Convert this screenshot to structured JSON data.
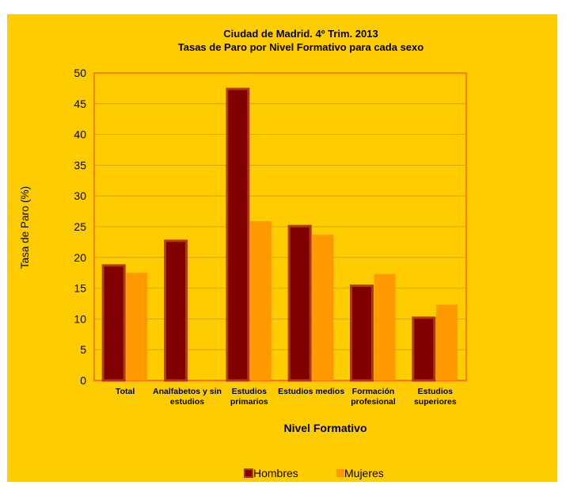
{
  "colors": {
    "background": "#FFCC00",
    "plot_area": "#FFCC00",
    "plot_border": "#FF6600",
    "hombres": "#800000",
    "hombres_edge": "#B03A10",
    "mujeres": "#FF9900"
  },
  "chart_data": {
    "type": "bar",
    "title": "Ciudad de Madrid. 4º Trim. 2013",
    "subtitle": "Tasas de Paro por Nivel Formativo para cada sexo",
    "xlabel": "Nivel Formativo",
    "ylabel": "Tasa de Paro (%)",
    "ylim": [
      0,
      50
    ],
    "yticks": [
      0,
      5,
      10,
      15,
      20,
      25,
      30,
      35,
      40,
      45,
      50
    ],
    "grid": true,
    "legend_position": "bottom",
    "categories": [
      [
        "Total"
      ],
      [
        "Analfabetos y sin",
        "estudios"
      ],
      [
        "Estudios",
        "primarios"
      ],
      [
        "Estudios medios"
      ],
      [
        "Formación",
        "profesional"
      ],
      [
        "Estudios",
        "superiores"
      ]
    ],
    "series": [
      {
        "name": "Hombres",
        "values": [
          18.7,
          22.7,
          47.4,
          25.1,
          15.4,
          10.2
        ]
      },
      {
        "name": "Mujeres",
        "values": [
          17.5,
          null,
          25.9,
          23.7,
          17.3,
          12.3
        ]
      }
    ]
  }
}
